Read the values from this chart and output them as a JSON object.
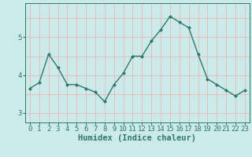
{
  "x": [
    0,
    1,
    2,
    3,
    4,
    5,
    6,
    7,
    8,
    9,
    10,
    11,
    12,
    13,
    14,
    15,
    16,
    17,
    18,
    19,
    20,
    21,
    22,
    23
  ],
  "y": [
    3.65,
    3.8,
    4.55,
    4.2,
    3.75,
    3.75,
    3.65,
    3.55,
    3.3,
    3.75,
    4.05,
    4.5,
    4.5,
    4.9,
    5.2,
    5.55,
    5.4,
    5.25,
    4.55,
    3.9,
    3.75,
    3.6,
    3.45,
    3.6
  ],
  "line_color": "#2d7a6a",
  "marker": "D",
  "marker_size": 2.0,
  "bg_color": "#cceaea",
  "grid_color_v": "#e8b0b0",
  "grid_color_h": "#e8b0b0",
  "xlabel": "Humidex (Indice chaleur)",
  "ylim": [
    2.75,
    5.9
  ],
  "xlim": [
    -0.5,
    23.5
  ],
  "yticks": [
    3,
    4,
    5
  ],
  "xticks": [
    0,
    1,
    2,
    3,
    4,
    5,
    6,
    7,
    8,
    9,
    10,
    11,
    12,
    13,
    14,
    15,
    16,
    17,
    18,
    19,
    20,
    21,
    22,
    23
  ],
  "tick_color": "#2d7a6a",
  "label_fontsize": 7.5,
  "tick_fontsize": 6.5,
  "line_width": 1.0
}
